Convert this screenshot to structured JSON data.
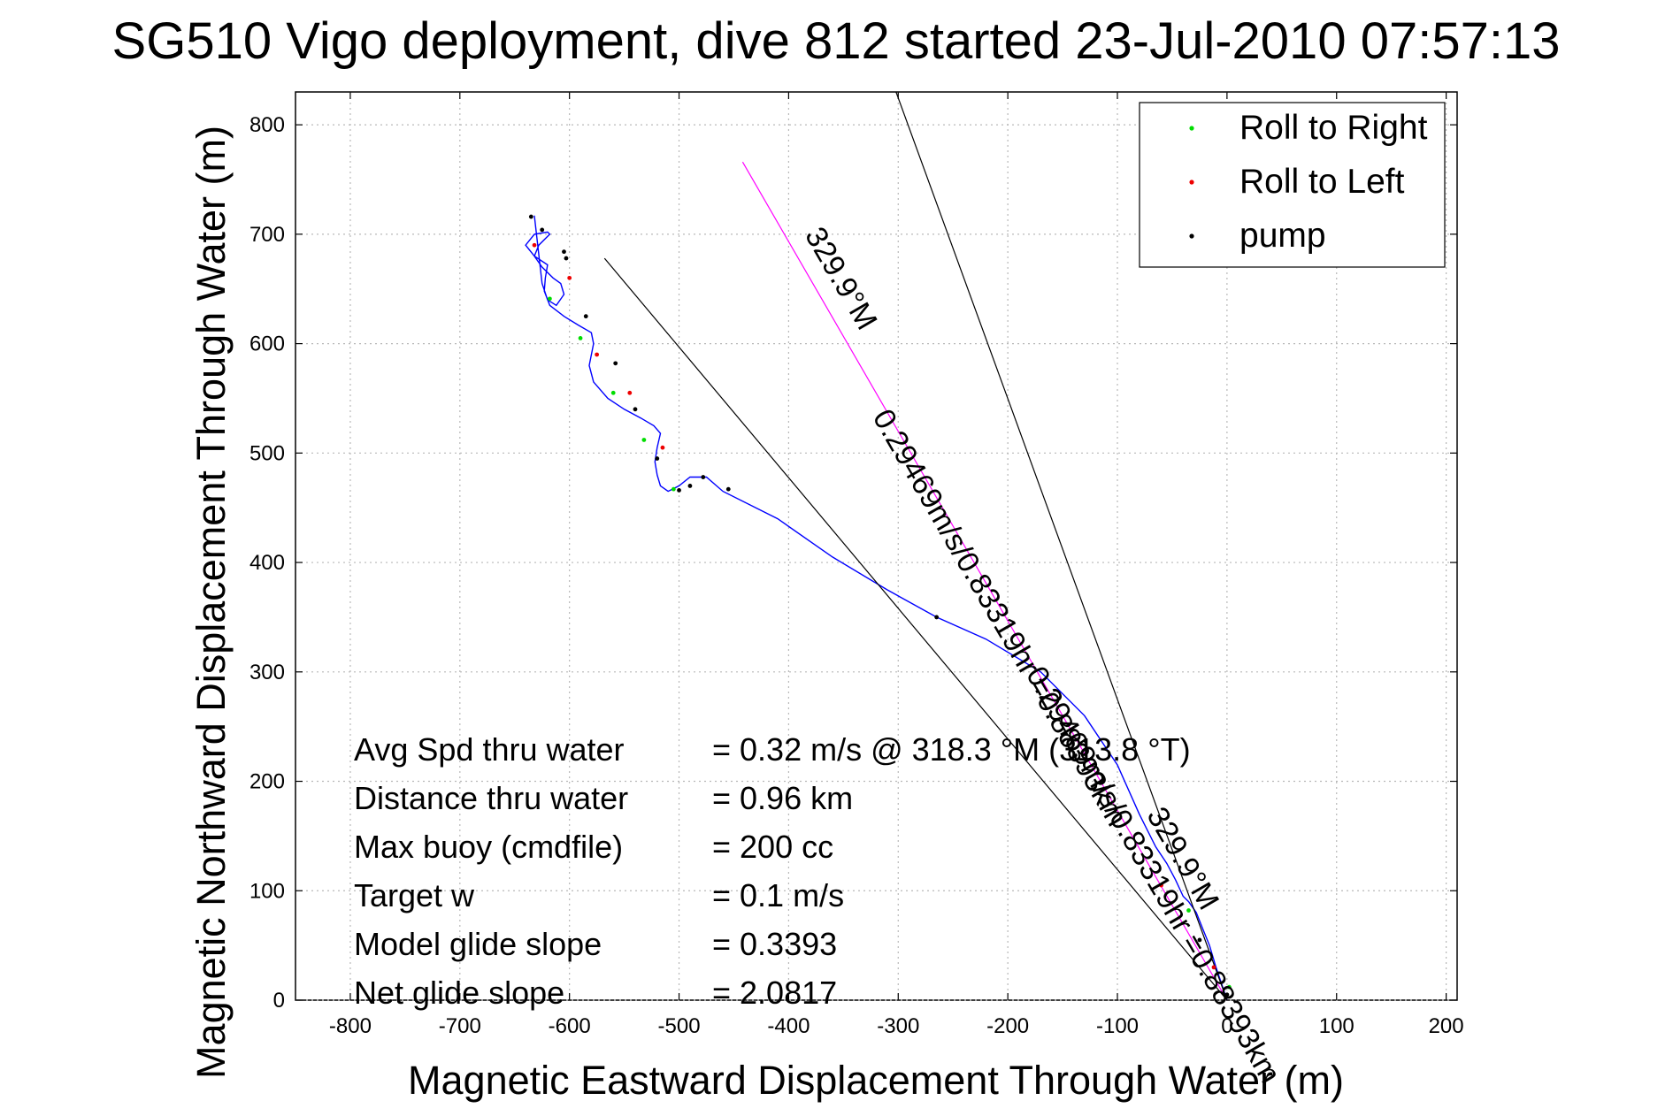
{
  "chart_data": {
    "type": "line",
    "title": "SG510 Vigo deployment, dive 812 started 23-Jul-2010 07:57:13",
    "xlabel": "Magnetic Eastward Displacement Through Water (m)",
    "ylabel": "Magnetic Northward Displacement Through Water (m)",
    "xlim": [
      -850,
      210
    ],
    "ylim": [
      0,
      830
    ],
    "xticks": [
      -800,
      -700,
      -600,
      -500,
      -400,
      -300,
      -200,
      -100,
      0,
      100,
      200
    ],
    "yticks": [
      0,
      100,
      200,
      300,
      400,
      500,
      600,
      700,
      800
    ],
    "grid": true,
    "legend_position": "top-right",
    "legend": [
      {
        "label": "Roll to Right",
        "color": "#00dd00"
      },
      {
        "label": "Roll to Left",
        "color": "#ee0000"
      },
      {
        "label": "pump",
        "color": "#000000"
      }
    ],
    "series": [
      {
        "kind": "track",
        "color": "#0000ff",
        "x": [
          0,
          -5,
          -10,
          -16,
          -22,
          -28,
          -35,
          -40,
          -47,
          -55,
          -65,
          -80,
          -100,
          -130,
          -170,
          -220,
          -265,
          -310,
          -360,
          -410,
          -460,
          -475,
          -490,
          -500,
          -510,
          -517,
          -520,
          -522,
          -520,
          -517,
          -523,
          -535,
          -550,
          -565,
          -578,
          -582,
          -578,
          -580,
          -592,
          -605,
          -618,
          -623,
          -622,
          -620,
          -632,
          -640,
          -632,
          -620,
          -618,
          -628,
          -632,
          -625,
          -615,
          -608,
          -605,
          -612,
          -620,
          -625,
          -632
        ],
        "y": [
          0,
          15,
          30,
          50,
          65,
          80,
          90,
          95,
          110,
          125,
          140,
          170,
          215,
          260,
          300,
          330,
          350,
          375,
          405,
          440,
          465,
          478,
          478,
          470,
          465,
          470,
          480,
          492,
          505,
          518,
          525,
          532,
          540,
          550,
          565,
          580,
          600,
          610,
          617,
          625,
          635,
          648,
          660,
          672,
          680,
          690,
          700,
          702,
          700,
          690,
          680,
          670,
          660,
          655,
          645,
          635,
          640,
          655,
          717
        ]
      },
      {
        "kind": "heading",
        "color": "#ff00ff",
        "x": [
          0,
          -442
        ],
        "y": [
          0,
          766
        ]
      },
      {
        "kind": "bound",
        "color": "#000000",
        "x": [
          0,
          -568
        ],
        "y": [
          0,
          678
        ]
      },
      {
        "kind": "bound",
        "color": "#000000",
        "x": [
          0,
          -302
        ],
        "y": [
          0,
          830
        ]
      }
    ],
    "pump_points": [
      {
        "x": -635,
        "y": 716
      },
      {
        "x": -625,
        "y": 704
      },
      {
        "x": -605,
        "y": 684
      },
      {
        "x": -603,
        "y": 678
      },
      {
        "x": -585,
        "y": 625
      },
      {
        "x": -558,
        "y": 582
      },
      {
        "x": -540,
        "y": 540
      },
      {
        "x": -520,
        "y": 495
      },
      {
        "x": -500,
        "y": 466
      },
      {
        "x": -490,
        "y": 470
      },
      {
        "x": -478,
        "y": 478
      },
      {
        "x": -455,
        "y": 467
      },
      {
        "x": -265,
        "y": 350
      },
      {
        "x": -25,
        "y": 55
      },
      {
        "x": 0,
        "y": 5
      }
    ],
    "roll_right_points": [
      {
        "x": -618,
        "y": 641
      },
      {
        "x": -590,
        "y": 605
      },
      {
        "x": -560,
        "y": 555
      },
      {
        "x": -532,
        "y": 512
      },
      {
        "x": -505,
        "y": 467
      },
      {
        "x": -35,
        "y": 82
      },
      {
        "x": 2,
        "y": 12
      }
    ],
    "roll_left_points": [
      {
        "x": -632,
        "y": 690
      },
      {
        "x": -600,
        "y": 660
      },
      {
        "x": -575,
        "y": 590
      },
      {
        "x": -545,
        "y": 555
      },
      {
        "x": -515,
        "y": 505
      },
      {
        "x": -60,
        "y": 105
      },
      {
        "x": -12,
        "y": 30
      }
    ],
    "annotations": [
      {
        "text": "329.9°M",
        "x": -360,
        "y": 655,
        "rotate": 59.9
      },
      {
        "text": "0.29469m/s/0.83319hr =0.88393km",
        "x": -215,
        "y": 345,
        "rotate": 59.9
      },
      {
        "text": "0.29469m/s/0.83319hr =0.88393km",
        "x": -75,
        "y": 110,
        "rotate": 59.9
      },
      {
        "text": "329.9°M",
        "x": -48,
        "y": 125,
        "rotate": 59.9
      }
    ],
    "stats": [
      {
        "label": "Avg Spd thru water",
        "value": "=  0.32 m/s @ 318.3 °M (313.8 °T)"
      },
      {
        "label": "Distance thru water",
        "value": "=  0.96 km"
      },
      {
        "label": "Max buoy (cmdfile)",
        "value": "= 200 cc"
      },
      {
        "label": "Target w",
        "value": "= 0.1 m/s"
      },
      {
        "label": "Model glide slope",
        "value": "= 0.3393"
      },
      {
        "label": "Net glide slope",
        "value": "= 2.0817"
      }
    ]
  }
}
